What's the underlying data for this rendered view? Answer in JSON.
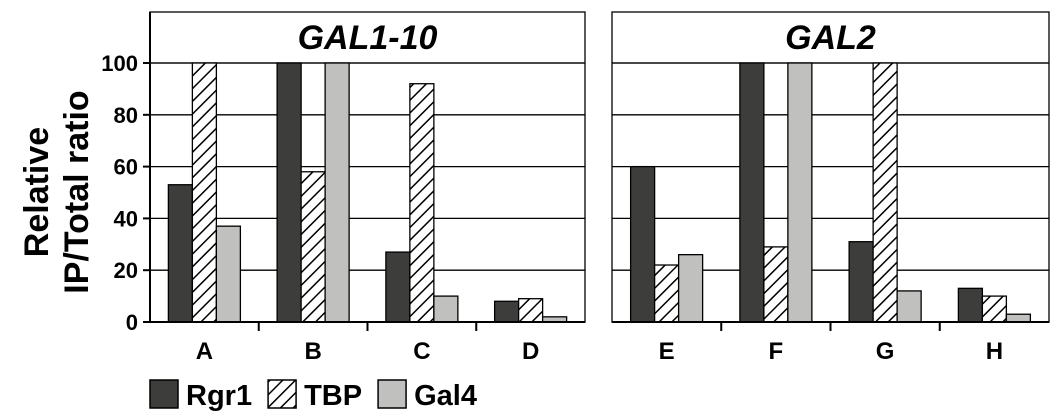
{
  "chart_data": {
    "type": "bar",
    "ylabel": [
      "Relative",
      "IP/Total ratio"
    ],
    "ylim": [
      0,
      100
    ],
    "yticks": [
      0,
      20,
      40,
      60,
      80,
      100
    ],
    "grid": true,
    "legend_position": "bottom-left",
    "series": [
      {
        "name": "Rgr1",
        "color": "#3d3d3b",
        "pattern": "solid"
      },
      {
        "name": "TBP",
        "color": "#ffffff",
        "pattern": "hatch"
      },
      {
        "name": "Gal4",
        "color": "#c0c0bf",
        "pattern": "solid"
      }
    ],
    "panels": [
      {
        "title": "GAL1-10",
        "categories": [
          "A",
          "B",
          "C",
          "D"
        ],
        "values": {
          "Rgr1": [
            53,
            100,
            27,
            8
          ],
          "TBP": [
            100,
            58,
            92,
            9
          ],
          "Gal4": [
            37,
            100,
            10,
            2
          ]
        }
      },
      {
        "title": "GAL2",
        "categories": [
          "E",
          "F",
          "G",
          "H"
        ],
        "values": {
          "Rgr1": [
            60,
            100,
            31,
            13
          ],
          "TBP": [
            22,
            29,
            100,
            10
          ],
          "Gal4": [
            26,
            100,
            12,
            3
          ]
        }
      }
    ]
  }
}
